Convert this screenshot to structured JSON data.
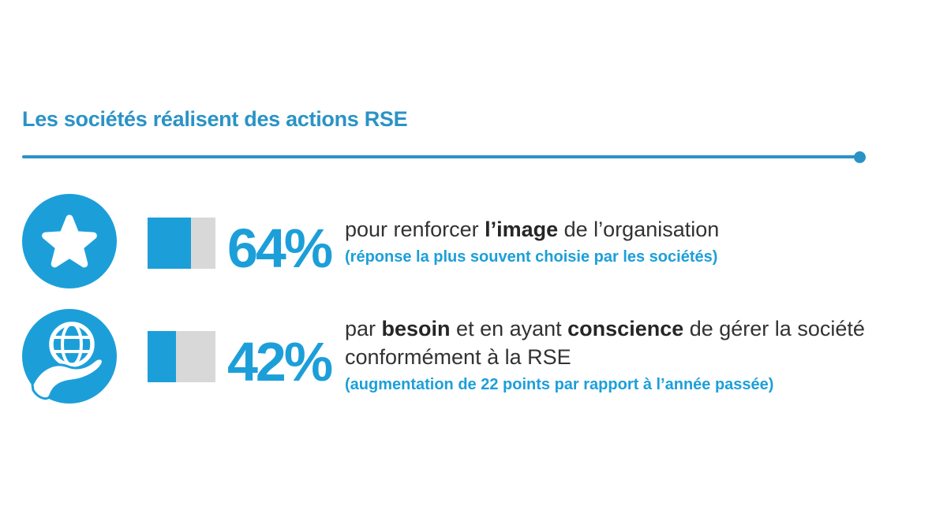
{
  "colors": {
    "accent": "#1c9fd9",
    "heading_blue": "#2a93c6",
    "text_dark": "#323232",
    "bar_track_gray": "#d8d8d9",
    "background": "#ffffff"
  },
  "title": "Les sociétés réalisent des actions RSE",
  "chart_data": {
    "type": "bar",
    "orientation": "horizontal",
    "unit": "%",
    "title": "Les sociétés réalisent des actions RSE",
    "categories": [
      "pour renforcer l’image de l’organisation",
      "par besoin et en ayant conscience de gérer la société conformément à la RSE"
    ],
    "values": [
      64,
      42
    ],
    "value_labels": [
      "64%",
      "42%"
    ],
    "annotations": [
      "(réponse la plus souvent choisie par les sociétés)",
      "(augmentation de 22 points par rapport à l’année passée)"
    ],
    "xlim": [
      0,
      100
    ],
    "grid": false,
    "legend": false
  },
  "rows": [
    {
      "icon": "star-icon",
      "value": 64,
      "percent_label": "64%",
      "segments": [
        {
          "t": "pour renforcer "
        },
        {
          "t": "l’image",
          "b": true
        },
        {
          "t": " de l’organisation"
        }
      ],
      "note": "(réponse la plus souvent choisie par les sociétés)"
    },
    {
      "icon": "globe-in-hand-icon",
      "value": 42,
      "percent_label": "42%",
      "segments": [
        {
          "t": "par "
        },
        {
          "t": "besoin",
          "b": true
        },
        {
          "t": " et en ayant "
        },
        {
          "t": "conscience",
          "b": true
        },
        {
          "t": " de gérer la société conformément à la RSE"
        }
      ],
      "note": "(augmentation de 22 points par rapport à l’année passée)"
    }
  ]
}
